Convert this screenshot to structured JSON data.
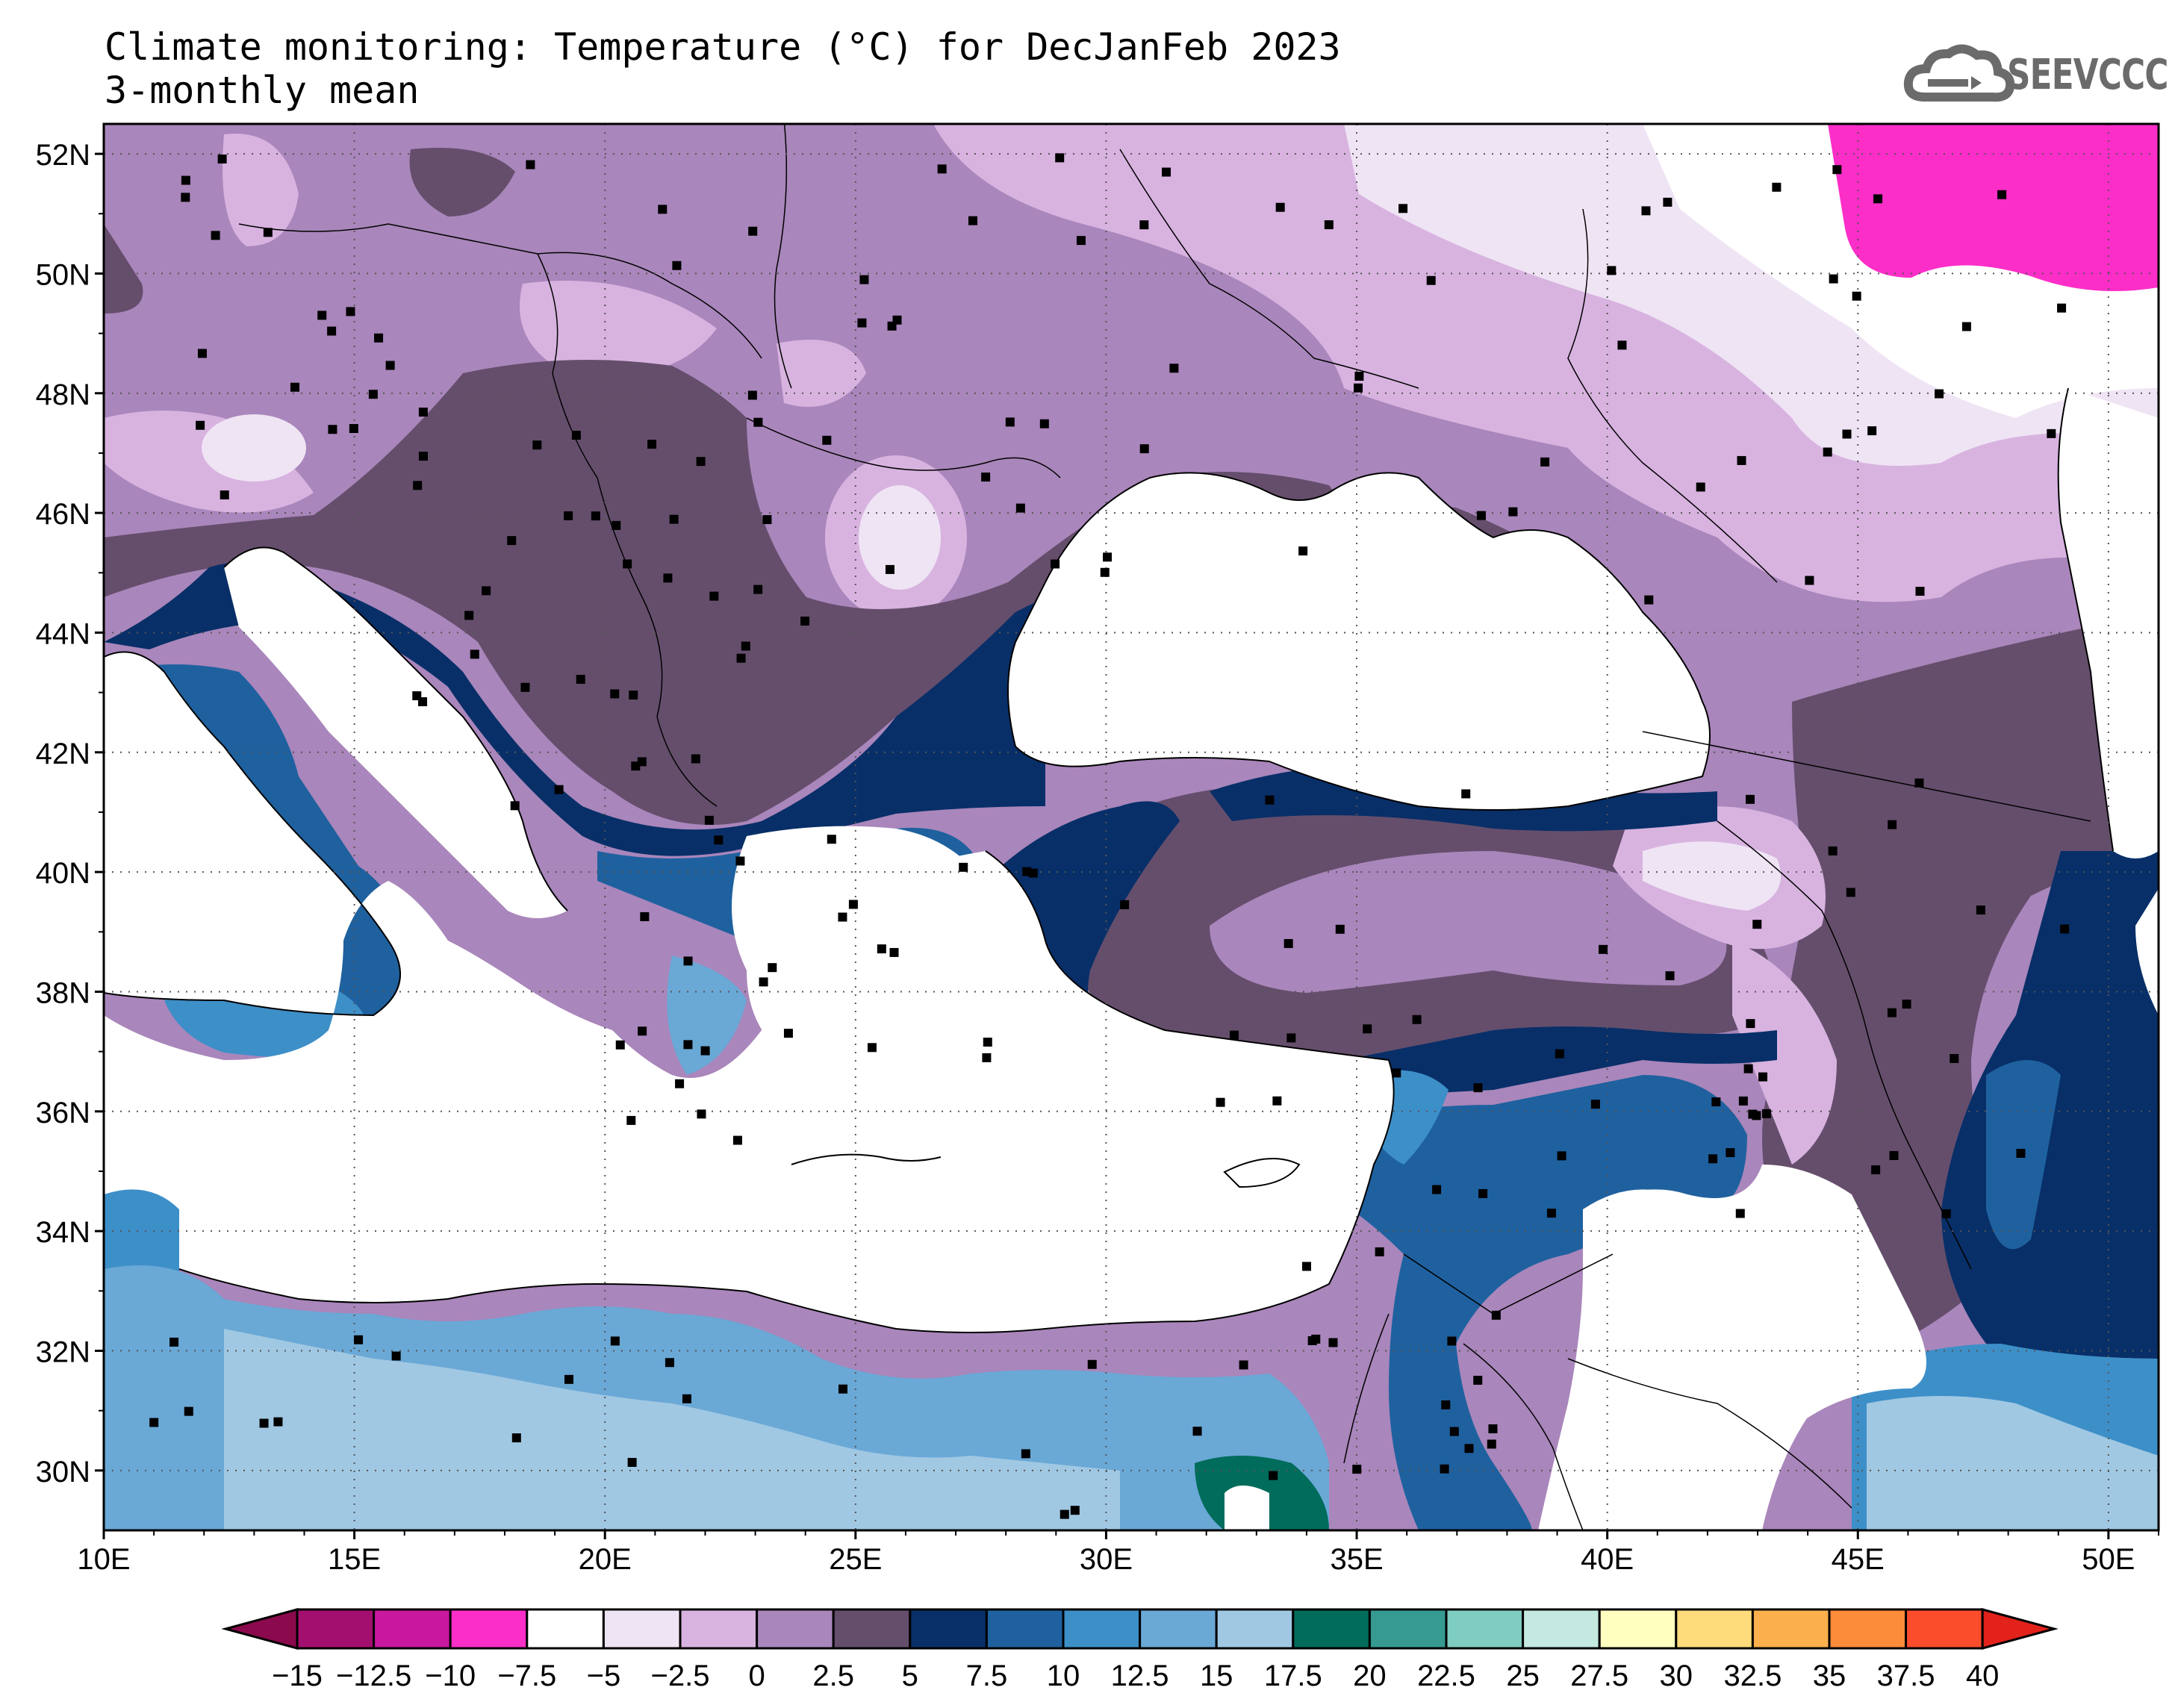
{
  "header": {
    "title": "Climate monitoring: Temperature (°C) for DecJanFeb 2023",
    "subtitle": "3-monthly mean",
    "logo_text": "SEEVCCC"
  },
  "map": {
    "lon_range": [
      10,
      51
    ],
    "lat_range": [
      29,
      52.5
    ],
    "lat_ticks": [
      "52N",
      "50N",
      "48N",
      "46N",
      "44N",
      "42N",
      "40N",
      "38N",
      "36N",
      "34N",
      "32N",
      "30N"
    ],
    "lon_ticks": [
      "10E",
      "15E",
      "20E",
      "25E",
      "30E",
      "35E",
      "40E",
      "45E",
      "50E"
    ],
    "grid": "dotted",
    "station_markers": "black squares"
  },
  "legend": {
    "labels": [
      "−15",
      "−12.5",
      "−10",
      "−7.5",
      "−5",
      "−2.5",
      "0",
      "2.5",
      "5",
      "7.5",
      "10",
      "12.5",
      "15",
      "17.5",
      "20",
      "22.5",
      "25",
      "27.5",
      "30",
      "32.5",
      "35",
      "37.5",
      "40"
    ],
    "colors": [
      "#8b0a4d",
      "#a30f6e",
      "#c8199e",
      "#fc2ec8",
      "#ffffff",
      "#efe4f4",
      "#d8b3e0",
      "#a986bb",
      "#654e6c",
      "#082f68",
      "#1f619f",
      "#3d8fc8",
      "#6aa8d6",
      "#a0c8e3",
      "#006c5b",
      "#369a91",
      "#7fcdc0",
      "#c4e9e0",
      "#ffffc0",
      "#ffdc7b",
      "#fbb04d",
      "#fc8b3a",
      "#fb4c2c",
      "#e3221c"
    ]
  },
  "colors": {
    "sea": "#ffffff",
    "temp_below_m7_5": "#fc2ec8",
    "temp_m5_m2_5": "#efe4f4",
    "temp_m2_5_0": "#d8b3e0",
    "temp_0_2_5": "#a986bb",
    "temp_2_5_5": "#654e6c",
    "temp_5_7_5": "#082f68",
    "temp_7_5_10": "#1f619f",
    "temp_10_12_5": "#3d8fc8",
    "temp_12_5_15": "#6aa8d6",
    "temp_15_17_5": "#a0c8e3",
    "temp_17_5_20": "#006c5b",
    "logo_grey": "#6b6b6b"
  }
}
